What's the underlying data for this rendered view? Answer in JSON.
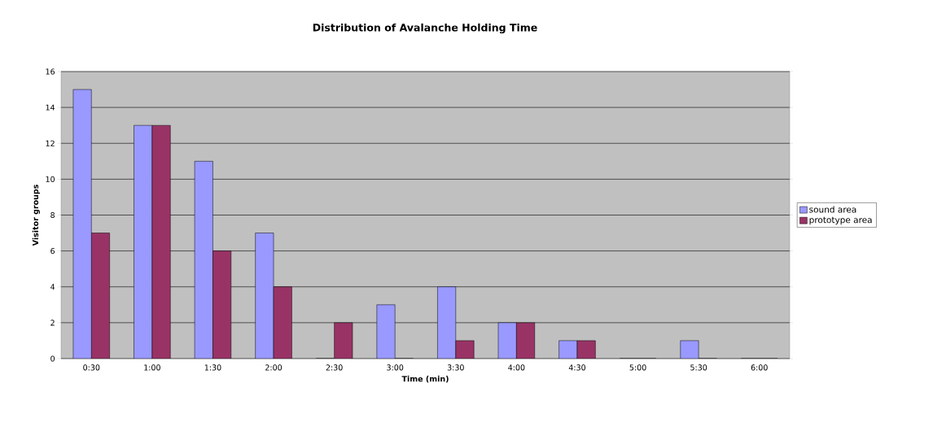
{
  "chart_data": {
    "type": "bar",
    "title": "Distribution of Avalanche Holding Time",
    "xlabel": "Time (min)",
    "ylabel": "Visitor groups",
    "categories": [
      "0:30",
      "1:00",
      "1:30",
      "2:00",
      "2:30",
      "3:00",
      "3:30",
      "4:00",
      "4:30",
      "5:00",
      "5:30",
      "6:00"
    ],
    "series": [
      {
        "name": "sound area",
        "color": "#9999ff",
        "values": [
          15,
          13,
          11,
          7,
          0,
          3,
          4,
          2,
          1,
          0,
          1,
          0
        ]
      },
      {
        "name": "prototype area",
        "color": "#993366",
        "values": [
          7,
          13,
          6,
          4,
          2,
          0,
          1,
          2,
          1,
          0,
          0,
          0
        ]
      }
    ],
    "ylim": [
      0,
      16
    ],
    "yticks": [
      0,
      2,
      4,
      6,
      8,
      10,
      12,
      14,
      16
    ],
    "grid": "y",
    "legend": "right"
  }
}
